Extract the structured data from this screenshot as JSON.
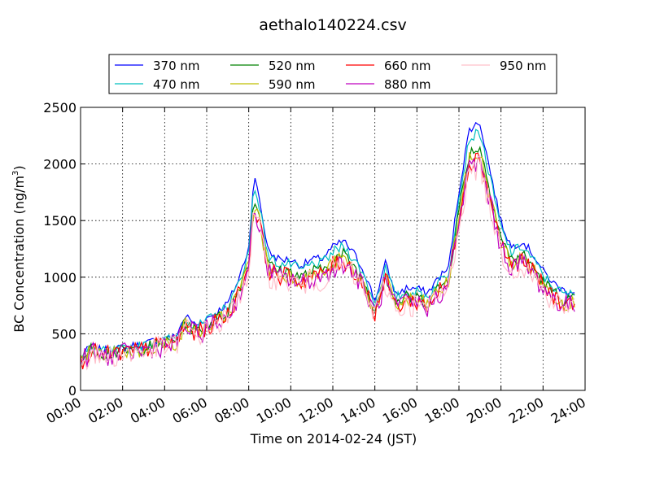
{
  "chart_data": {
    "type": "line",
    "title": "aethalo140224.csv",
    "xlabel": "Time on 2014-02-24 (JST)",
    "ylabel": "BC Concentration (ng/m",
    "ylabel_sup": "3",
    "ylabel_close": ")",
    "ylim": [
      0,
      2500
    ],
    "yticks": [
      0,
      500,
      1000,
      1500,
      2000,
      2500
    ],
    "xlim": [
      "00:00",
      "24:00"
    ],
    "xticks": [
      "00:00",
      "02:00",
      "04:00",
      "06:00",
      "08:00",
      "10:00",
      "12:00",
      "14:00",
      "16:00",
      "18:00",
      "20:00",
      "22:00",
      "24:00"
    ],
    "grid": true,
    "legend_position": "top-center",
    "x_hours": [
      0,
      0.5,
      1,
      1.5,
      2,
      2.5,
      3,
      3.5,
      4,
      4.5,
      5,
      5.5,
      6,
      6.5,
      7,
      7.5,
      8,
      8.25,
      8.5,
      8.75,
      9,
      9.5,
      10,
      10.5,
      11,
      11.5,
      12,
      12.5,
      13,
      13.5,
      14,
      14.5,
      15,
      15.5,
      16,
      16.5,
      17,
      17.5,
      18,
      18.5,
      19,
      19.5,
      19.75,
      20,
      20.5,
      21,
      21.5,
      22,
      22.5,
      23,
      23.5
    ],
    "series": [
      {
        "name": "370 nm",
        "color": "#0000ff",
        "scale": 1.1,
        "values": [
          260,
          360,
          320,
          330,
          340,
          360,
          370,
          400,
          420,
          430,
          600,
          520,
          580,
          630,
          700,
          880,
          1150,
          1720,
          1550,
          1280,
          1100,
          1050,
          1050,
          1000,
          1050,
          1060,
          1150,
          1200,
          1100,
          950,
          720,
          1020,
          770,
          820,
          820,
          780,
          900,
          980,
          1600,
          2100,
          2150,
          1750,
          1550,
          1350,
          1150,
          1200,
          1100,
          960,
          860,
          800,
          800
        ]
      },
      {
        "name": "470 nm",
        "color": "#00bfbf",
        "scale": 1.06,
        "values": [
          260,
          360,
          320,
          330,
          340,
          360,
          370,
          400,
          420,
          430,
          600,
          520,
          580,
          630,
          700,
          880,
          1150,
          1720,
          1550,
          1280,
          1100,
          1050,
          1050,
          1000,
          1050,
          1060,
          1150,
          1200,
          1100,
          950,
          720,
          1020,
          770,
          820,
          820,
          780,
          900,
          980,
          1600,
          2100,
          2150,
          1750,
          1550,
          1350,
          1150,
          1200,
          1100,
          960,
          860,
          800,
          800
        ]
      },
      {
        "name": "520 nm",
        "color": "#008000",
        "scale": 1.0,
        "values": [
          260,
          360,
          320,
          330,
          340,
          360,
          370,
          400,
          420,
          430,
          600,
          520,
          580,
          630,
          700,
          880,
          1150,
          1720,
          1550,
          1280,
          1100,
          1050,
          1050,
          1000,
          1050,
          1060,
          1150,
          1200,
          1100,
          950,
          720,
          1020,
          770,
          820,
          820,
          780,
          900,
          980,
          1600,
          2100,
          2150,
          1750,
          1550,
          1350,
          1150,
          1200,
          1100,
          960,
          860,
          800,
          800
        ]
      },
      {
        "name": "590 nm",
        "color": "#bfbf00",
        "scale": 0.97,
        "values": [
          260,
          360,
          320,
          330,
          340,
          360,
          370,
          400,
          420,
          430,
          600,
          520,
          580,
          630,
          700,
          880,
          1150,
          1720,
          1550,
          1280,
          1100,
          1050,
          1050,
          1000,
          1050,
          1060,
          1150,
          1200,
          1100,
          950,
          720,
          1020,
          770,
          820,
          820,
          780,
          900,
          980,
          1600,
          2100,
          2150,
          1750,
          1550,
          1350,
          1150,
          1200,
          1100,
          960,
          860,
          800,
          800
        ]
      },
      {
        "name": "660 nm",
        "color": "#ff0000",
        "scale": 0.96,
        "values": [
          260,
          360,
          320,
          330,
          340,
          360,
          370,
          400,
          420,
          430,
          600,
          520,
          580,
          630,
          700,
          880,
          1150,
          1720,
          1550,
          1280,
          1100,
          1050,
          1050,
          1000,
          1050,
          1060,
          1150,
          1200,
          1100,
          950,
          720,
          1020,
          770,
          820,
          820,
          780,
          900,
          980,
          1600,
          2100,
          2150,
          1750,
          1550,
          1350,
          1150,
          1200,
          1100,
          960,
          860,
          800,
          800
        ]
      },
      {
        "name": "880 nm",
        "color": "#bf00bf",
        "scale": 0.94,
        "values": [
          260,
          360,
          320,
          330,
          340,
          360,
          370,
          400,
          420,
          430,
          600,
          520,
          580,
          630,
          700,
          880,
          1150,
          1720,
          1550,
          1280,
          1100,
          1050,
          1050,
          1000,
          1050,
          1060,
          1150,
          1200,
          1100,
          950,
          720,
          1020,
          770,
          820,
          820,
          780,
          900,
          980,
          1600,
          2100,
          2150,
          1750,
          1550,
          1350,
          1150,
          1200,
          1100,
          960,
          860,
          800,
          800
        ]
      },
      {
        "name": "950 nm",
        "color": "#ffc0cb",
        "scale": 0.92,
        "values": [
          260,
          360,
          320,
          330,
          340,
          360,
          370,
          400,
          420,
          430,
          600,
          520,
          580,
          630,
          700,
          880,
          1150,
          1720,
          1550,
          1280,
          1100,
          1050,
          1050,
          1000,
          1050,
          1060,
          1150,
          1200,
          1100,
          950,
          720,
          1020,
          770,
          820,
          820,
          780,
          900,
          980,
          1600,
          2100,
          2150,
          1750,
          1550,
          1350,
          1150,
          1200,
          1100,
          960,
          860,
          800,
          800
        ]
      }
    ]
  }
}
